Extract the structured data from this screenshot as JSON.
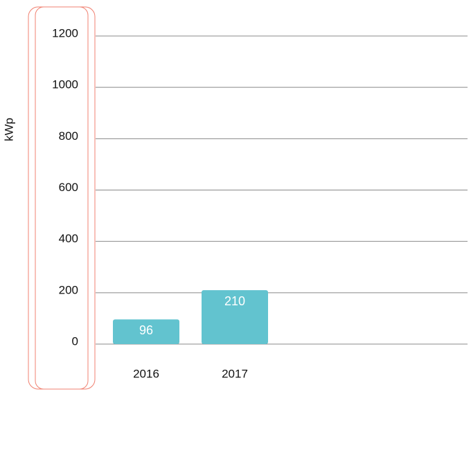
{
  "chart_data": {
    "type": "bar",
    "y_label": "kWp",
    "categories": [
      "2016",
      "2017"
    ],
    "values": [
      96,
      210
    ],
    "color": "#62c3cf",
    "ylim": [
      0,
      1200
    ],
    "yticks": [
      0,
      200,
      400,
      600,
      800,
      1000,
      1200
    ],
    "grid": true
  }
}
